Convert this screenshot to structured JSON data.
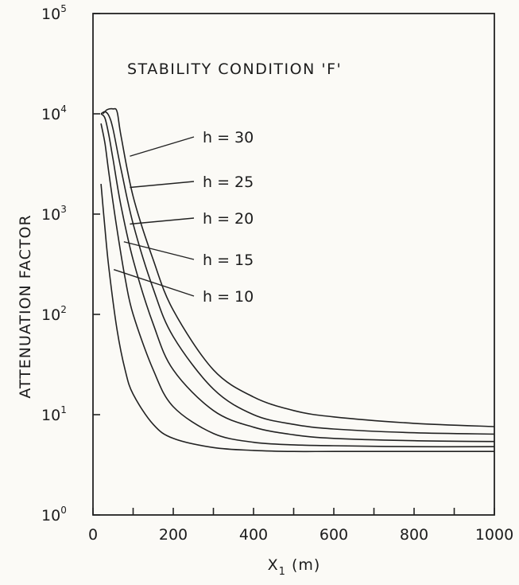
{
  "chart_data": {
    "type": "line",
    "title": "STABILITY CONDITION 'F'",
    "xlabel": "X",
    "xlabel_sub": "1",
    "xlabel_unit": "(m)",
    "ylabel": "ATTENUATION FACTOR",
    "xlim": [
      0,
      1000
    ],
    "ylim": [
      1,
      100000
    ],
    "yscale": "log",
    "x_ticks": [
      0,
      200,
      400,
      600,
      800,
      1000
    ],
    "x_tick_labels": [
      "0",
      "200",
      "400",
      "600",
      "800",
      "1000"
    ],
    "y_ticks": [
      {
        "value": 1,
        "base": "10",
        "exp": "0"
      },
      {
        "value": 10,
        "base": "10",
        "exp": "1"
      },
      {
        "value": 100,
        "base": "10",
        "exp": "2"
      },
      {
        "value": 1000,
        "base": "10",
        "exp": "3"
      },
      {
        "value": 10000,
        "base": "10",
        "exp": "4"
      },
      {
        "value": 100000,
        "base": "10",
        "exp": "5"
      }
    ],
    "grid": false,
    "series": [
      {
        "name": "h=30",
        "x": [
          25,
          35,
          50,
          60,
          70,
          100,
          150,
          200,
          300,
          400,
          500,
          600,
          800,
          1000
        ],
        "y": [
          10000,
          11000,
          11200,
          10500,
          6000,
          1500,
          350,
          110,
          28,
          15,
          11,
          9.5,
          8.2,
          7.6
        ]
      },
      {
        "name": "h=25",
        "x": [
          20,
          30,
          40,
          50,
          70,
          100,
          150,
          200,
          300,
          400,
          500,
          600,
          800,
          1000
        ],
        "y": [
          10000,
          10500,
          9500,
          7000,
          2800,
          800,
          180,
          60,
          18,
          10,
          8,
          7.2,
          6.6,
          6.4
        ]
      },
      {
        "name": "h=20",
        "x": [
          20,
          30,
          40,
          50,
          70,
          100,
          150,
          200,
          300,
          400,
          500,
          600,
          800,
          1000
        ],
        "y": [
          10000,
          9000,
          6000,
          3500,
          1200,
          350,
          80,
          28,
          11,
          7.5,
          6.3,
          5.8,
          5.5,
          5.4
        ]
      },
      {
        "name": "h=15",
        "x": [
          20,
          30,
          40,
          60,
          80,
          100,
          150,
          200,
          300,
          400,
          500,
          600,
          800,
          1000
        ],
        "y": [
          8000,
          5000,
          2500,
          700,
          230,
          100,
          28,
          12,
          6.5,
          5.3,
          5.0,
          4.9,
          4.8,
          4.8
        ]
      },
      {
        "name": "h=10",
        "x": [
          20,
          30,
          40,
          60,
          80,
          100,
          150,
          200,
          300,
          400,
          500,
          600,
          800,
          1000
        ],
        "y": [
          2000,
          700,
          280,
          70,
          28,
          16,
          8,
          5.8,
          4.7,
          4.4,
          4.3,
          4.3,
          4.3,
          4.3
        ]
      }
    ],
    "annotations": [
      {
        "text": "h = 30",
        "series": 0,
        "at_x": 80
      },
      {
        "text": "h = 25",
        "series": 1,
        "at_x": 80
      },
      {
        "text": "h = 20",
        "series": 2,
        "at_x": 80
      },
      {
        "text": "h = 15",
        "series": 3,
        "at_x": 65
      },
      {
        "text": "h = 10",
        "series": 4,
        "at_x": 40
      }
    ]
  }
}
